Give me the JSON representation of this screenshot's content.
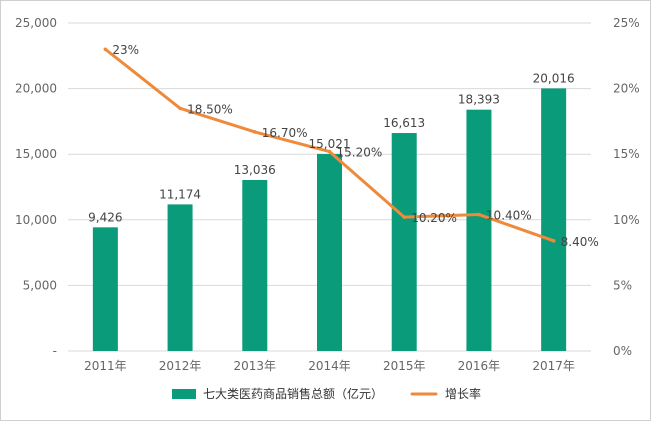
{
  "chart_data": {
    "type": "bar+line",
    "categories": [
      "2011年",
      "2012年",
      "2013年",
      "2014年",
      "2015年",
      "2016年",
      "2017年"
    ],
    "series": [
      {
        "name": "七大类医药商品销售总额（亿元）",
        "type": "bar",
        "axis": "left",
        "values": [
          9426,
          11174,
          13036,
          15021,
          16613,
          18393,
          20016
        ],
        "labels": [
          "9,426",
          "11,174",
          "13,036",
          "15,021",
          "16,613",
          "18,393",
          "20,016"
        ]
      },
      {
        "name": "增长率",
        "type": "line",
        "axis": "right",
        "values": [
          23,
          18.5,
          16.7,
          15.2,
          10.2,
          10.4,
          8.4
        ],
        "labels": [
          "23%",
          "18.50%",
          "16.70%",
          "15.20%",
          "10.20%",
          "10.40%",
          "8.40%"
        ]
      }
    ],
    "left_axis": {
      "ticks": [
        "-",
        "5,000",
        "10,000",
        "15,000",
        "20,000",
        "25,000"
      ],
      "tick_values": [
        0,
        5000,
        10000,
        15000,
        20000,
        25000
      ],
      "range": [
        0,
        25000
      ]
    },
    "right_axis": {
      "ticks": [
        "0%",
        "5%",
        "10%",
        "15%",
        "20%",
        "25%"
      ],
      "tick_values": [
        0,
        5,
        10,
        15,
        20,
        25
      ],
      "range": [
        0,
        25
      ]
    },
    "grid": true,
    "legend_position": "bottom",
    "colors": {
      "bar": "#0a9b7a",
      "line": "#ef8a3b",
      "grid": "#d9d9d9",
      "axis_text": "#666666",
      "label_text": "#444444",
      "frame": "#cfcfcf"
    }
  }
}
